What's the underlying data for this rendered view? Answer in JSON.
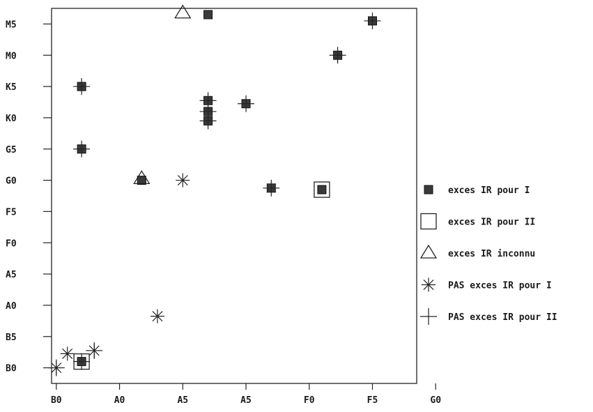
{
  "chart_data": {
    "type": "scatter",
    "title": "",
    "xlabel": "",
    "ylabel": "",
    "grid": false,
    "legend_position": "right",
    "xlim": [
      -0.15,
      11.4
    ],
    "ylim": [
      -0.5,
      11.5
    ],
    "x_ticks": [
      {
        "value": 0,
        "label": "B0"
      },
      {
        "value": 2,
        "label": "A0"
      },
      {
        "value": 4,
        "label": "A5"
      },
      {
        "value": 6,
        "label": "A5"
      },
      {
        "value": 8,
        "label": "F0"
      },
      {
        "value": 10,
        "label": "F5"
      },
      {
        "value": 12,
        "label": "G0"
      }
    ],
    "y_ticks": [
      {
        "value": 0,
        "label": "B0"
      },
      {
        "value": 1,
        "label": "B5"
      },
      {
        "value": 2,
        "label": "A0"
      },
      {
        "value": 3,
        "label": "A5"
      },
      {
        "value": 4,
        "label": "F0"
      },
      {
        "value": 5,
        "label": "F5"
      },
      {
        "value": 6,
        "label": "G0"
      },
      {
        "value": 7,
        "label": "G5"
      },
      {
        "value": 8,
        "label": "K0"
      },
      {
        "value": 9,
        "label": "K5"
      },
      {
        "value": 10,
        "label": "M0"
      },
      {
        "value": 11,
        "label": "M5"
      }
    ],
    "series": [
      {
        "name": "exces IR pour I",
        "marker": "filled-square",
        "color": "#3a3a3a",
        "points": [
          [
            0.8,
            0.2
          ],
          [
            0.8,
            7.0
          ],
          [
            0.8,
            9.0
          ],
          [
            4.8,
            8.2
          ],
          [
            4.8,
            7.9
          ],
          [
            4.8,
            8.55
          ],
          [
            4.8,
            11.3
          ],
          [
            6.8,
            5.75
          ],
          [
            8.9,
            10.0
          ],
          [
            6.0,
            8.45
          ],
          [
            10.0,
            11.1
          ],
          [
            8.4,
            5.7
          ],
          [
            2.7,
            6.0
          ]
        ]
      },
      {
        "name": "exces IR pour II",
        "marker": "open-square",
        "color": "#222222",
        "points": [
          [
            0.8,
            0.2
          ],
          [
            8.4,
            5.7
          ]
        ]
      },
      {
        "name": "exces IR inconnu",
        "marker": "open-triangle",
        "color": "#222222",
        "points": [
          [
            4.0,
            11.35
          ],
          [
            2.7,
            6.05
          ]
        ]
      },
      {
        "name": "PAS exces IR pour I",
        "marker": "asterisk",
        "color": "#222222",
        "points": [
          [
            0.0,
            0.0
          ],
          [
            0.35,
            0.45
          ],
          [
            1.2,
            0.55
          ],
          [
            3.2,
            1.65
          ],
          [
            4.0,
            6.0
          ]
        ]
      },
      {
        "name": "PAS exces IR pour II",
        "marker": "plus",
        "color": "#222222",
        "points": [
          [
            0.0,
            0.0
          ],
          [
            0.8,
            0.2
          ],
          [
            1.2,
            0.55
          ],
          [
            0.8,
            7.0
          ],
          [
            0.8,
            9.0
          ],
          [
            4.8,
            7.9
          ],
          [
            4.8,
            8.2
          ],
          [
            4.8,
            8.55
          ],
          [
            6.0,
            8.45
          ],
          [
            6.8,
            5.75
          ],
          [
            8.9,
            10.0
          ],
          [
            10.0,
            11.1
          ]
        ]
      }
    ]
  }
}
